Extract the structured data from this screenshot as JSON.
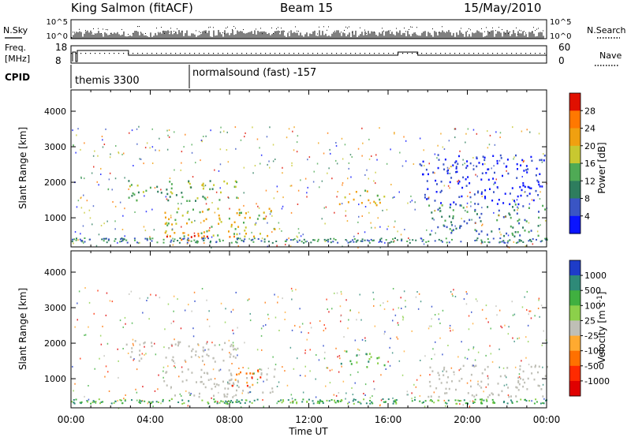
{
  "header": {
    "station": "King Salmon (fitACF)",
    "beam": "Beam 15",
    "date": "15/May/2010"
  },
  "noise_panel": {
    "left_label": "N.Sky",
    "right_label": "N.Search",
    "ticks": [
      "10^5",
      "10^0"
    ]
  },
  "freq_panel": {
    "left_label_line1": "Freq.",
    "left_label_line2": "[MHz]",
    "left_ticks": [
      "18",
      "8"
    ],
    "right_label": "Nave",
    "right_ticks": [
      "60",
      "0"
    ]
  },
  "cpid_panel": {
    "label": "CPID",
    "programs": [
      {
        "name": "themis 3300",
        "start_hour": 0.0
      },
      {
        "name": "normalsound (fast) -157",
        "start_hour": 6.0
      }
    ]
  },
  "chart_data": [
    {
      "type": "heatmap",
      "name": "power",
      "ylabel": "Slant Range [km]",
      "ylim": [
        180,
        4600
      ],
      "y_ticks": [
        "1000",
        "2000",
        "3000",
        "4000"
      ],
      "xlim": [
        0,
        24
      ],
      "colorbar_label": "Power [dB]",
      "colorbar_ticks": [
        "4",
        "8",
        "12",
        "16",
        "20",
        "24",
        "28"
      ],
      "colors": [
        "#0a14ff",
        "#3a55c4",
        "#2e7d5e",
        "#4faa55",
        "#c8c830",
        "#f0a010",
        "#ff7800",
        "#e01000"
      ],
      "features": [
        {
          "t0": 2.7,
          "t1": 8.5,
          "r0": 1500,
          "r1": 2100,
          "level": 3
        },
        {
          "t0": 4.5,
          "t1": 10.3,
          "r0": 500,
          "r1": 1300,
          "level": 4
        },
        {
          "t0": 4.8,
          "t1": 8.3,
          "r0": 380,
          "r1": 650,
          "level": 6
        },
        {
          "t0": 13.5,
          "t1": 15.8,
          "r0": 1350,
          "r1": 1800,
          "level": 4
        },
        {
          "t0": 18.0,
          "t1": 24.0,
          "r0": 500,
          "r1": 1400,
          "level": 2
        },
        {
          "t0": 17.5,
          "t1": 24.0,
          "r0": 1400,
          "r1": 2800,
          "level": 0
        }
      ]
    },
    {
      "type": "heatmap",
      "name": "velocity",
      "ylabel": "Slant Range [km]",
      "ylim": [
        180,
        4600
      ],
      "y_ticks": [
        "1000",
        "2000",
        "3000",
        "4000"
      ],
      "xlim": [
        0,
        24
      ],
      "x_ticks": [
        "00:00",
        "04:00",
        "08:00",
        "12:00",
        "16:00",
        "20:00",
        "00:00"
      ],
      "xlabel": "Time UT",
      "colorbar_label": "Velocity [m s^-1]",
      "colorbar_ticks": [
        "1000",
        "500",
        "100",
        "25",
        "-25",
        "-100",
        "-500",
        "-1000"
      ],
      "colors": [
        "#1e3cc8",
        "#2e8a78",
        "#40b040",
        "#8cd04a",
        "#bfbfb6",
        "#ffaa30",
        "#ff7000",
        "#ff2a00",
        "#e00000"
      ],
      "features": [
        {
          "t0": 2.7,
          "t1": 8.5,
          "r0": 1500,
          "r1": 2100,
          "level": 4
        },
        {
          "t0": 4.5,
          "t1": 10.3,
          "r0": 500,
          "r1": 1300,
          "level": 4
        },
        {
          "t0": 8.0,
          "t1": 9.8,
          "r0": 800,
          "r1": 1300,
          "level": 6
        },
        {
          "t0": 13.5,
          "t1": 15.8,
          "r0": 1350,
          "r1": 1800,
          "level": 2
        },
        {
          "t0": 18.0,
          "t1": 24.0,
          "r0": 500,
          "r1": 1400,
          "level": 4
        }
      ]
    }
  ]
}
